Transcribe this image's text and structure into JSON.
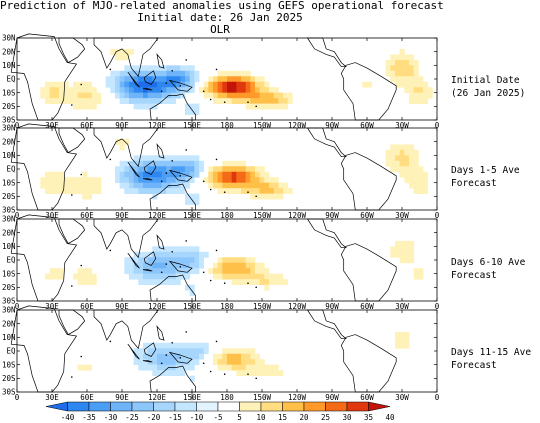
{
  "title": {
    "line1": "Prediction of MJO-related anomalies using GEFS operational forecast",
    "line2": "Initial date: 26 Jan 2025",
    "line3": "OLR"
  },
  "lat_labels": [
    "30N",
    "20N",
    "10N",
    "EQ",
    "10S",
    "20S",
    "30S"
  ],
  "lon_labels": [
    "0",
    "30E",
    "60E",
    "90E",
    "120E",
    "150E",
    "180",
    "150W",
    "120W",
    "90W",
    "60W",
    "30W",
    "0"
  ],
  "panels": [
    {
      "label_line1": "Initial Date",
      "label_line2": "(26 Jan 2025)",
      "scale": 1.0
    },
    {
      "label_line1": "Days 1-5 Ave",
      "label_line2": "Forecast",
      "scale": 0.85
    },
    {
      "label_line1": "Days 6-10 Ave",
      "label_line2": "Forecast",
      "scale": 0.55
    },
    {
      "label_line1": "Days 11-15 Ave",
      "label_line2": "Forecast",
      "scale": 0.45
    }
  ],
  "colorbar": {
    "labels": [
      "-40",
      "-35",
      "-30",
      "-25",
      "-20",
      "-15",
      "-10",
      "-5",
      "5",
      "10",
      "15",
      "20",
      "25",
      "30",
      "35",
      "40"
    ],
    "colors": [
      "#1e6eeb",
      "#2e86f0",
      "#4a9ef5",
      "#6fb4f9",
      "#8cc6fb",
      "#a7d6fd",
      "#c4e6fe",
      "#e2f4ff",
      "#ffffff",
      "#fff2b8",
      "#ffdd80",
      "#ffc04a",
      "#ff9a2a",
      "#f56a16",
      "#e0380e",
      "#c21408"
    ]
  }
}
